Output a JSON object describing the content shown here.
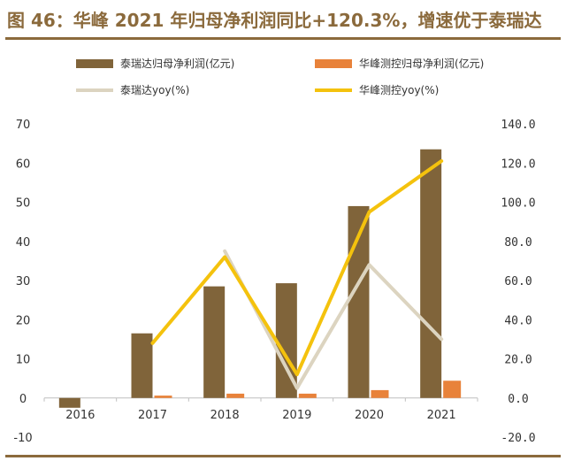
{
  "title": "图 46：华峰 2021 年归母净利润同比+120.3%，增速优于泰瑞达",
  "colors": {
    "title": "#8b6a3c",
    "teradyne_profit": "#80643a",
    "huafeng_profit": "#e8823a",
    "teradyne_yoy": "#dcd4c0",
    "huafeng_yoy": "#f4c20d",
    "axis": "#bfbfbf"
  },
  "chart_data": {
    "type": "bar",
    "categories": [
      "2016",
      "2017",
      "2018",
      "2019",
      "2020",
      "2021"
    ],
    "series": [
      {
        "name": "泰瑞达归母净利润(亿元)",
        "type": "bar",
        "axis": "left",
        "values": [
          -2.5,
          16.5,
          28.5,
          29.3,
          49.0,
          63.5
        ]
      },
      {
        "name": "华峰测控归母净利润(亿元)",
        "type": "bar",
        "axis": "left",
        "values": [
          null,
          0.6,
          1.1,
          1.1,
          2.0,
          4.4
        ]
      },
      {
        "name": "泰瑞达yoy(%)",
        "type": "line",
        "axis": "right",
        "values": [
          null,
          null,
          75,
          5,
          68,
          30
        ]
      },
      {
        "name": "华峰测控yoy(%)",
        "type": "line",
        "axis": "right",
        "values": [
          null,
          28,
          72,
          12,
          95,
          121
        ]
      }
    ],
    "y_left": {
      "min": -10,
      "max": 70,
      "ticks": [
        "-10",
        "0",
        "10",
        "20",
        "30",
        "40",
        "50",
        "60",
        "70"
      ]
    },
    "y_right": {
      "min": -20,
      "max": 140,
      "ticks": [
        "-20.0",
        "0.0",
        "20.0",
        "40.0",
        "60.0",
        "80.0",
        "100.0",
        "120.0",
        "140.0"
      ]
    },
    "legend_position": "top",
    "grid": false
  }
}
